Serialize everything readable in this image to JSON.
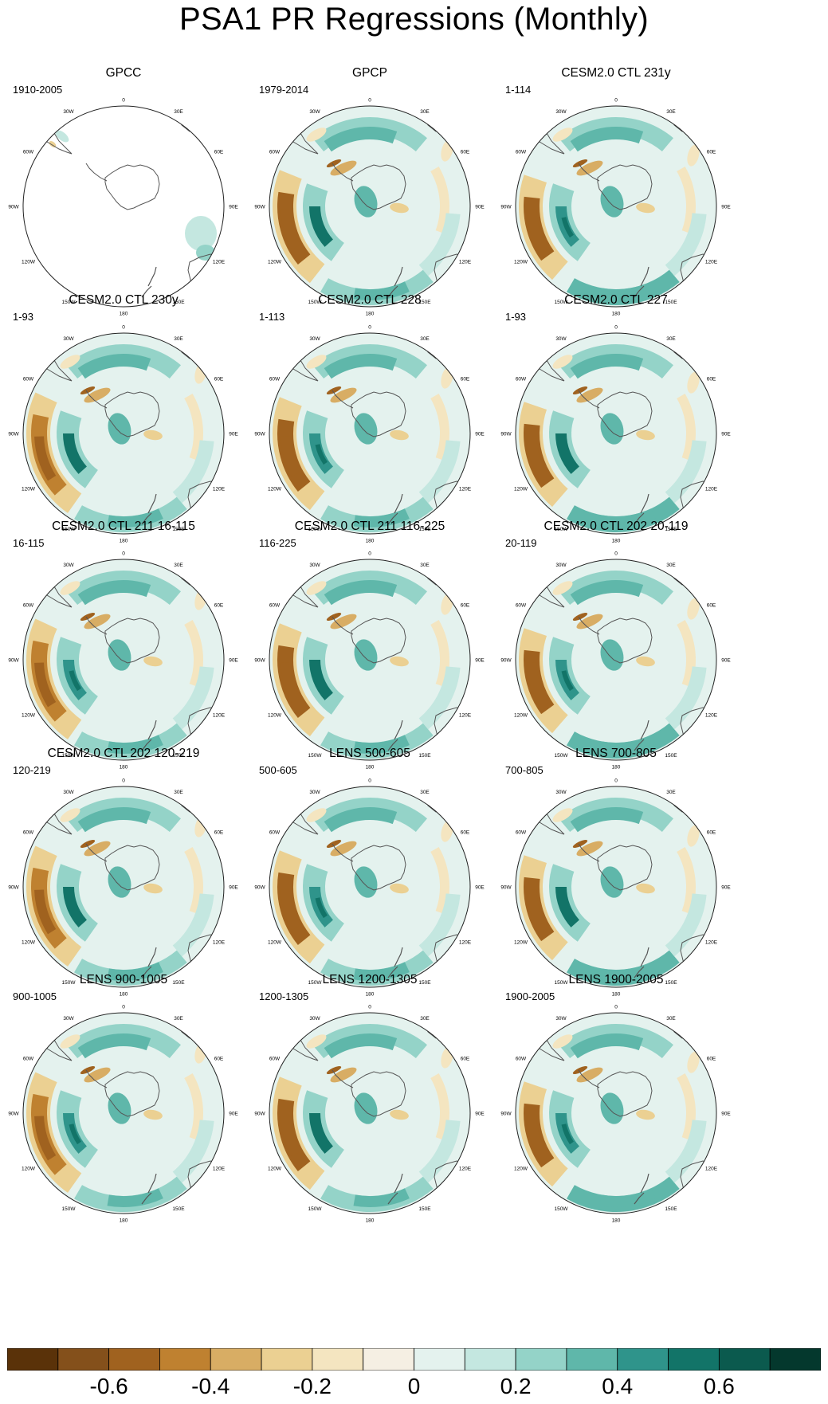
{
  "title": "PSA1 PR Regressions (Monthly)",
  "colors": {
    "coast": "#555555",
    "ring": "#222222"
  },
  "colorbar": {
    "colors": [
      "#5a3209",
      "#84501b",
      "#a0621f",
      "#bf8130",
      "#d8ad64",
      "#ebd092",
      "#f4e5c0",
      "#f5efe3",
      "#e4f2ee",
      "#c4e7e0",
      "#94d3c8",
      "#5fb7aa",
      "#2f948b",
      "#127468",
      "#0b5a4e",
      "#04382d"
    ],
    "labels": [
      "-0.6",
      "-0.4",
      "-0.2",
      "0",
      "0.2",
      "0.4",
      "0.6"
    ]
  },
  "lon_labels": [
    "0",
    "30E",
    "60E",
    "90E",
    "120E",
    "150E",
    "180",
    "150W",
    "120W",
    "90W",
    "60W",
    "30W"
  ],
  "panels": [
    {
      "title": "GPCC",
      "period": "1910-2005",
      "type": "gpcc"
    },
    {
      "title": "GPCP",
      "period": "1979-2014",
      "type": "obs"
    },
    {
      "title": "CESM2.0 CTL 231y",
      "period": "1-114",
      "type": "model"
    },
    {
      "title": "CESM2.0 CTL 230y",
      "period": "1-93",
      "type": "model"
    },
    {
      "title": "CESM2.0 CTL 228",
      "period": "1-113",
      "type": "model"
    },
    {
      "title": "CESM2.0 CTL 227",
      "period": "1-93",
      "type": "model"
    },
    {
      "title": "CESM2.0 CTL 211 16-115",
      "period": "16-115",
      "type": "model"
    },
    {
      "title": "CESM2.0 CTL 211 116-225",
      "period": "116-225",
      "type": "model"
    },
    {
      "title": "CESM2.0 CTL 202 20-119",
      "period": "20-119",
      "type": "model"
    },
    {
      "title": "CESM2.0 CTL 202 120-219",
      "period": "120-219",
      "type": "model"
    },
    {
      "title": "LENS 500-605",
      "period": "500-605",
      "type": "model"
    },
    {
      "title": "LENS 700-805",
      "period": "700-805",
      "type": "model"
    },
    {
      "title": "LENS 900-1005",
      "period": "900-1005",
      "type": "model"
    },
    {
      "title": "LENS 1200-1305",
      "period": "1200-1305",
      "type": "model"
    },
    {
      "title": "LENS 1900-2005",
      "period": "1900-2005",
      "type": "model"
    }
  ]
}
